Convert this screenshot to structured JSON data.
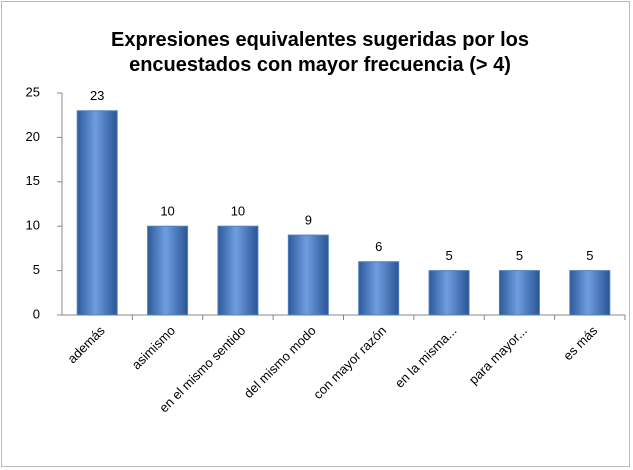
{
  "chart_data": {
    "type": "bar",
    "title": "Expresiones equivalentes sugeridas por los encuestados con mayor frecuencia (> 4)",
    "categories": [
      "además",
      "asimismo",
      "en el mismo sentido",
      "del mismo modo",
      "con mayor razón",
      "en la misma...",
      "para mayor...",
      "es más"
    ],
    "values": [
      23,
      10,
      10,
      9,
      6,
      5,
      5,
      5
    ],
    "color": "#4f81bd",
    "ylim": [
      0,
      25
    ],
    "yticks": [
      0,
      5,
      10,
      15,
      20,
      25
    ],
    "grid": false
  }
}
